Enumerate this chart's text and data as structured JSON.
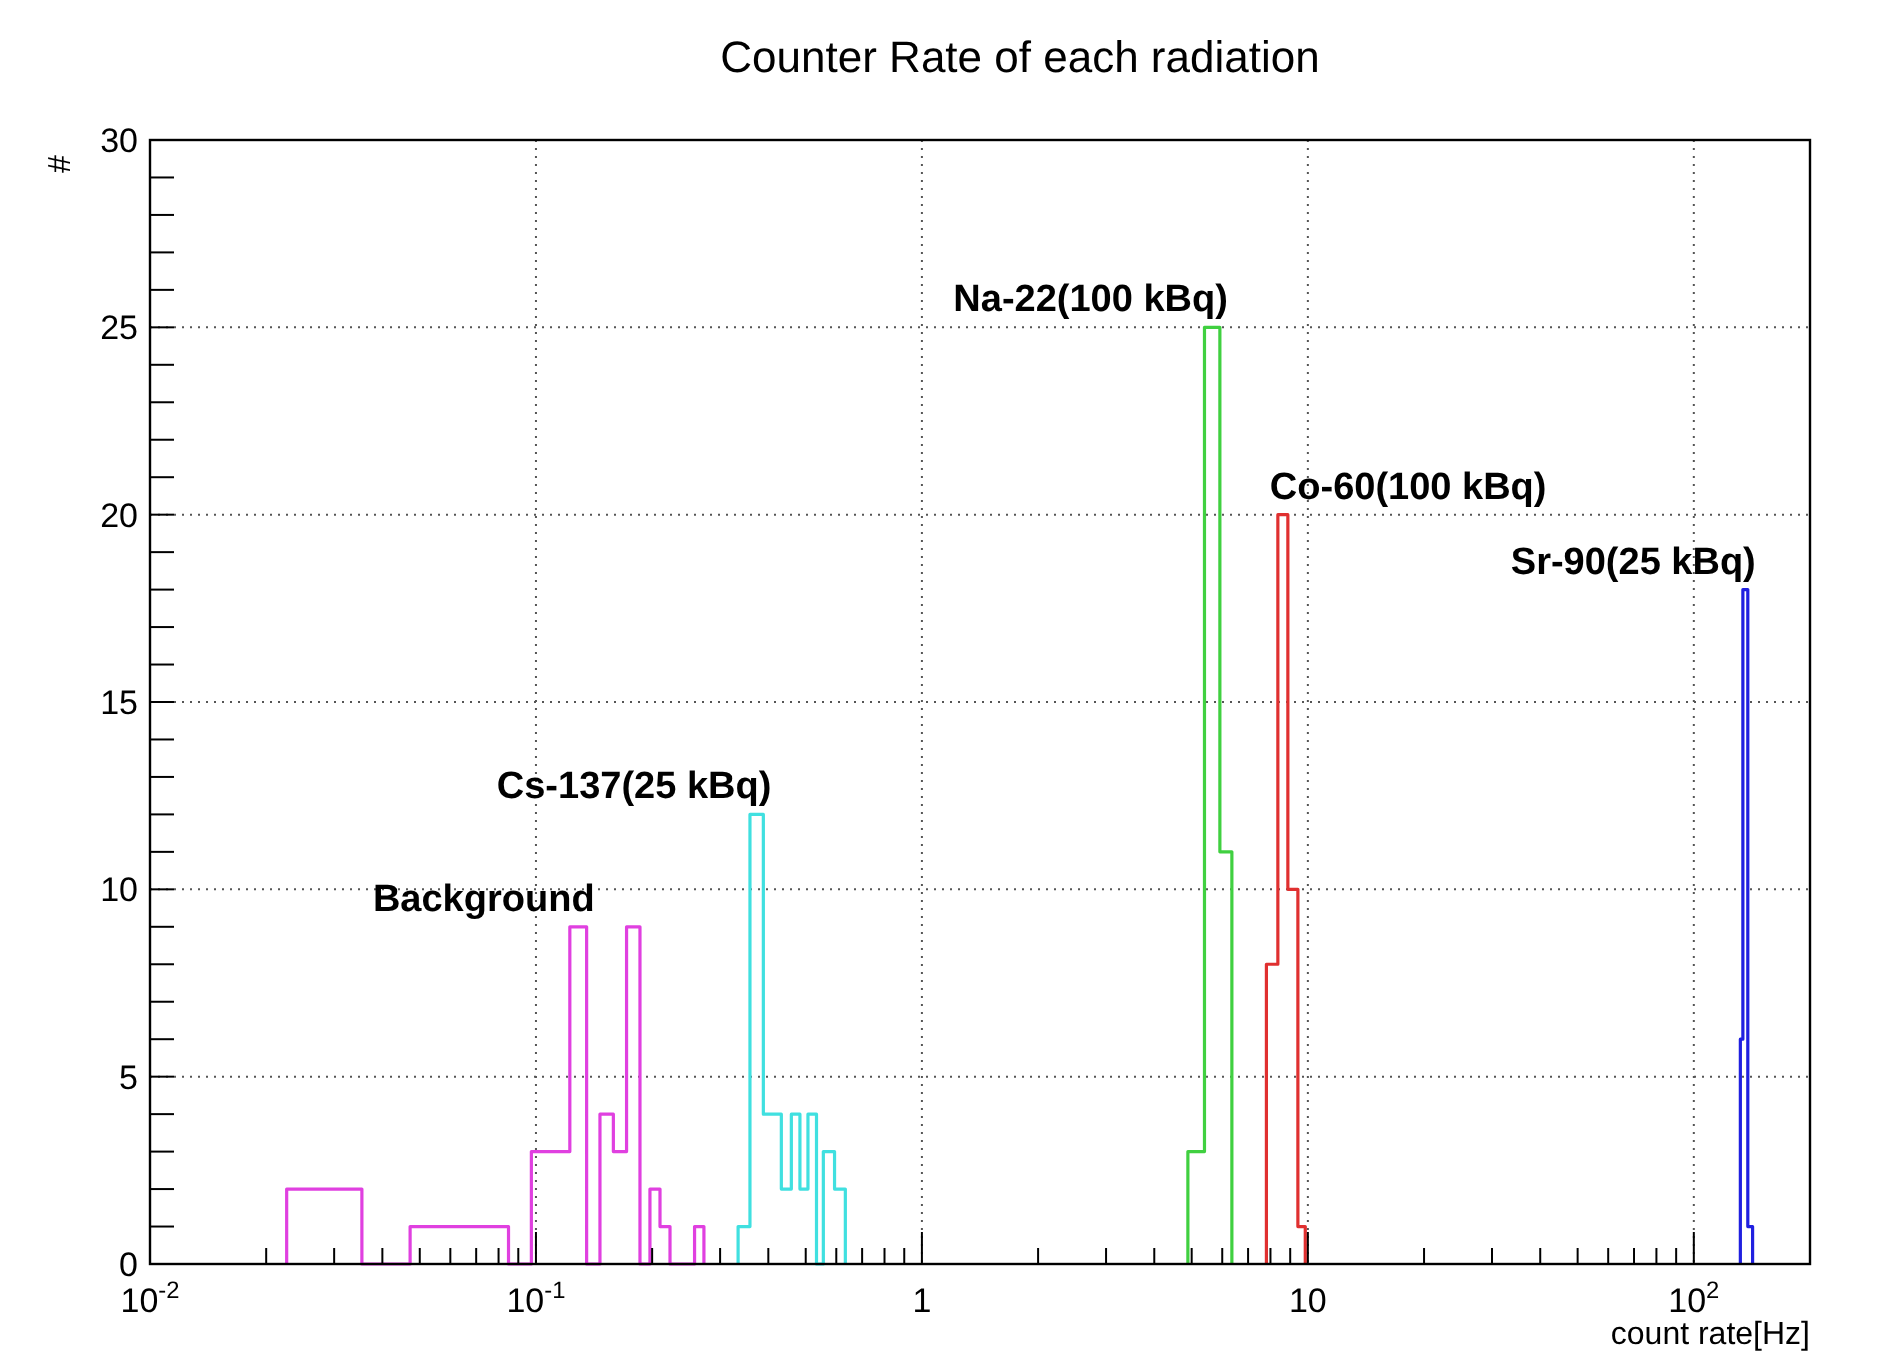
{
  "chart_data": {
    "type": "step",
    "title": "Counter Rate of each radiation",
    "xlabel": "count rate[Hz]",
    "ylabel": "#",
    "log": "x",
    "grid": true,
    "legend": false,
    "xlim": [
      0.01,
      200
    ],
    "ylim": [
      0,
      30
    ],
    "xticks": [
      {
        "value": 0.01,
        "label": "10$^{-2}$"
      },
      {
        "value": 0.02,
        "label": null
      },
      {
        "value": 0.03,
        "label": null
      },
      {
        "value": 0.04,
        "label": null
      },
      {
        "value": 0.05,
        "label": null
      },
      {
        "value": 0.06,
        "label": null
      },
      {
        "value": 0.07,
        "label": null
      },
      {
        "value": 0.08,
        "label": null
      },
      {
        "value": 0.09,
        "label": null
      },
      {
        "value": 0.1,
        "label": "10$^{-1}$"
      },
      {
        "value": 0.2,
        "label": null
      },
      {
        "value": 0.3,
        "label": null
      },
      {
        "value": 0.4,
        "label": null
      },
      {
        "value": 0.5,
        "label": null
      },
      {
        "value": 0.6,
        "label": null
      },
      {
        "value": 0.7,
        "label": null
      },
      {
        "value": 0.8,
        "label": null
      },
      {
        "value": 0.9,
        "label": null
      },
      {
        "value": 1,
        "label": "1"
      },
      {
        "value": 2,
        "label": null
      },
      {
        "value": 3,
        "label": null
      },
      {
        "value": 4,
        "label": null
      },
      {
        "value": 5,
        "label": null
      },
      {
        "value": 6,
        "label": null
      },
      {
        "value": 7,
        "label": null
      },
      {
        "value": 8,
        "label": null
      },
      {
        "value": 9,
        "label": null
      },
      {
        "value": 10,
        "label": "10"
      },
      {
        "value": 20,
        "label": null
      },
      {
        "value": 30,
        "label": null
      },
      {
        "value": 40,
        "label": null
      },
      {
        "value": 50,
        "label": null
      },
      {
        "value": 60,
        "label": null
      },
      {
        "value": 70,
        "label": null
      },
      {
        "value": 80,
        "label": null
      },
      {
        "value": 90,
        "label": null
      },
      {
        "value": 100,
        "label": "10$^{2}$"
      }
    ],
    "yticks": [
      0,
      {
        "value": 1,
        "label": null
      },
      {
        "value": 2,
        "label": null
      },
      {
        "value": 3,
        "label": null
      },
      {
        "value": 4,
        "label": null
      },
      5,
      {
        "value": 6,
        "label": null
      },
      {
        "value": 7,
        "label": null
      },
      {
        "value": 8,
        "label": null
      },
      {
        "value": 9,
        "label": null
      },
      10,
      {
        "value": 11,
        "label": null
      },
      {
        "value": 12,
        "label": null
      },
      {
        "value": 13,
        "label": null
      },
      {
        "value": 14,
        "label": null
      },
      15,
      {
        "value": 16,
        "label": null
      },
      {
        "value": 17,
        "label": null
      },
      {
        "value": 18,
        "label": null
      },
      {
        "value": 19,
        "label": null
      },
      20,
      {
        "value": 21,
        "label": null
      },
      {
        "value": 22,
        "label": null
      },
      {
        "value": 23,
        "label": null
      },
      {
        "value": 24,
        "label": null
      },
      25,
      {
        "value": 26,
        "label": null
      },
      {
        "value": 27,
        "label": null
      },
      {
        "value": 28,
        "label": null
      },
      {
        "value": 29,
        "label": null
      },
      30
    ],
    "series": [
      {
        "name": "Background",
        "color": "#e040e0",
        "x": [
          0.0226,
          0.0226,
          0.0354,
          0.0472,
          0.0849,
          0.0973,
          0.1224,
          0.1353,
          0.1465,
          0.1587,
          0.1717,
          0.186,
          0.1974,
          0.2096,
          0.2225,
          0.2576,
          0.2724
        ],
        "values": [
          0,
          2,
          0,
          1,
          0,
          3,
          9,
          0,
          4,
          3,
          9,
          0,
          2,
          1,
          0,
          1,
          0
        ]
      },
      {
        "name": "Cs-137(25 kBq)",
        "color": "#40e0e0",
        "x": [
          0.334,
          0.334,
          0.3585,
          0.3883,
          0.4323,
          0.4589,
          0.483,
          0.5067,
          0.5332,
          0.5554,
          0.5938,
          0.6333
        ],
        "values": [
          0,
          1,
          12,
          4,
          2,
          4,
          2,
          4,
          0,
          3,
          2,
          0
        ]
      },
      {
        "name": "Na-22(100 kBq)",
        "color": "#40d040",
        "x": [
          4.888,
          4.888,
          5.397,
          5.916,
          6.355
        ],
        "values": [
          0,
          3,
          25,
          11,
          0
        ]
      },
      {
        "name": "Co-60(100 kBq)",
        "color": "#e03030",
        "x": [
          7.809,
          7.809,
          8.361,
          8.875,
          9.422,
          9.847
        ],
        "values": [
          0,
          8,
          20,
          10,
          1,
          0
        ]
      },
      {
        "name": "Sr-90(25 kBq)",
        "color": "#2020e0",
        "x": [
          132,
          132,
          134,
          138,
          142
        ],
        "values": [
          0,
          6,
          18,
          1,
          0
        ]
      }
    ]
  }
}
